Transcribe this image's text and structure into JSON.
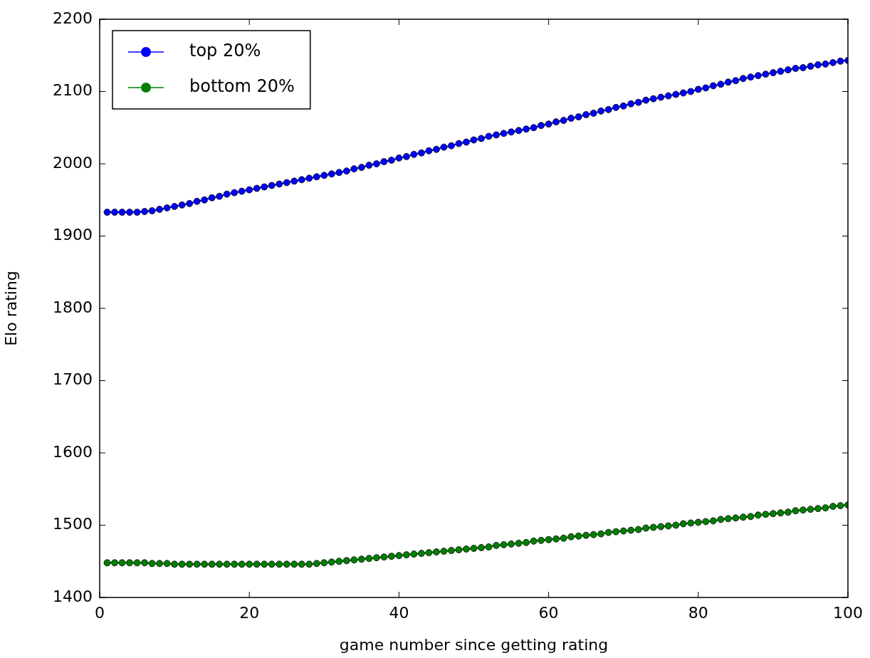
{
  "chart_data": {
    "type": "line",
    "xlabel": "game number since getting rating",
    "ylabel": "Elo rating",
    "x": [
      1,
      2,
      3,
      4,
      5,
      6,
      7,
      8,
      9,
      10,
      11,
      12,
      13,
      14,
      15,
      16,
      17,
      18,
      19,
      20,
      21,
      22,
      23,
      24,
      25,
      26,
      27,
      28,
      29,
      30,
      31,
      32,
      33,
      34,
      35,
      36,
      37,
      38,
      39,
      40,
      41,
      42,
      43,
      44,
      45,
      46,
      47,
      48,
      49,
      50,
      51,
      52,
      53,
      54,
      55,
      56,
      57,
      58,
      59,
      60,
      61,
      62,
      63,
      64,
      65,
      66,
      67,
      68,
      69,
      70,
      71,
      72,
      73,
      74,
      75,
      76,
      77,
      78,
      79,
      80,
      81,
      82,
      83,
      84,
      85,
      86,
      87,
      88,
      89,
      90,
      91,
      92,
      93,
      94,
      95,
      96,
      97,
      98,
      99,
      100
    ],
    "series": [
      {
        "name": "top 20%",
        "color": "#0000ff",
        "values": [
          1933,
          1933,
          1933,
          1933,
          1933,
          1934,
          1935,
          1937,
          1939,
          1941,
          1943,
          1945,
          1948,
          1950,
          1953,
          1955,
          1958,
          1960,
          1962,
          1964,
          1966,
          1968,
          1970,
          1972,
          1974,
          1976,
          1978,
          1980,
          1982,
          1984,
          1986,
          1988,
          1990,
          1993,
          1995,
          1998,
          2000,
          2003,
          2005,
          2008,
          2010,
          2013,
          2015,
          2018,
          2020,
          2023,
          2025,
          2028,
          2030,
          2033,
          2035,
          2038,
          2040,
          2042,
          2044,
          2046,
          2048,
          2050,
          2053,
          2055,
          2058,
          2060,
          2063,
          2065,
          2068,
          2070,
          2073,
          2075,
          2078,
          2080,
          2083,
          2085,
          2088,
          2090,
          2092,
          2094,
          2096,
          2098,
          2100,
          2103,
          2105,
          2108,
          2110,
          2113,
          2115,
          2118,
          2120,
          2122,
          2124,
          2126,
          2128,
          2130,
          2132,
          2133,
          2135,
          2137,
          2138,
          2140,
          2142,
          2143
        ]
      },
      {
        "name": "bottom 20%",
        "color": "#007f00",
        "values": [
          1448,
          1448,
          1448,
          1448,
          1448,
          1448,
          1447,
          1447,
          1447,
          1446,
          1446,
          1446,
          1446,
          1446,
          1446,
          1446,
          1446,
          1446,
          1446,
          1446,
          1446,
          1446,
          1446,
          1446,
          1446,
          1446,
          1446,
          1446,
          1447,
          1448,
          1449,
          1450,
          1451,
          1452,
          1453,
          1454,
          1455,
          1456,
          1457,
          1458,
          1459,
          1460,
          1461,
          1462,
          1463,
          1464,
          1465,
          1466,
          1467,
          1468,
          1469,
          1470,
          1472,
          1473,
          1474,
          1475,
          1476,
          1478,
          1479,
          1480,
          1481,
          1482,
          1484,
          1485,
          1486,
          1487,
          1488,
          1490,
          1491,
          1492,
          1493,
          1494,
          1496,
          1497,
          1498,
          1499,
          1500,
          1502,
          1503,
          1504,
          1505,
          1506,
          1508,
          1509,
          1510,
          1511,
          1512,
          1514,
          1515,
          1516,
          1517,
          1518,
          1520,
          1521,
          1522,
          1523,
          1524,
          1526,
          1527,
          1528
        ]
      }
    ],
    "xlim": [
      0,
      100
    ],
    "xticks": [
      0,
      20,
      40,
      60,
      80,
      100
    ],
    "ylim": [
      1400,
      2200
    ],
    "yticks": [
      1400,
      1500,
      1600,
      1700,
      1800,
      1900,
      2000,
      2100,
      2200
    ],
    "grid": false,
    "legend": "top left",
    "marker": "circle",
    "line_style": "solid"
  }
}
